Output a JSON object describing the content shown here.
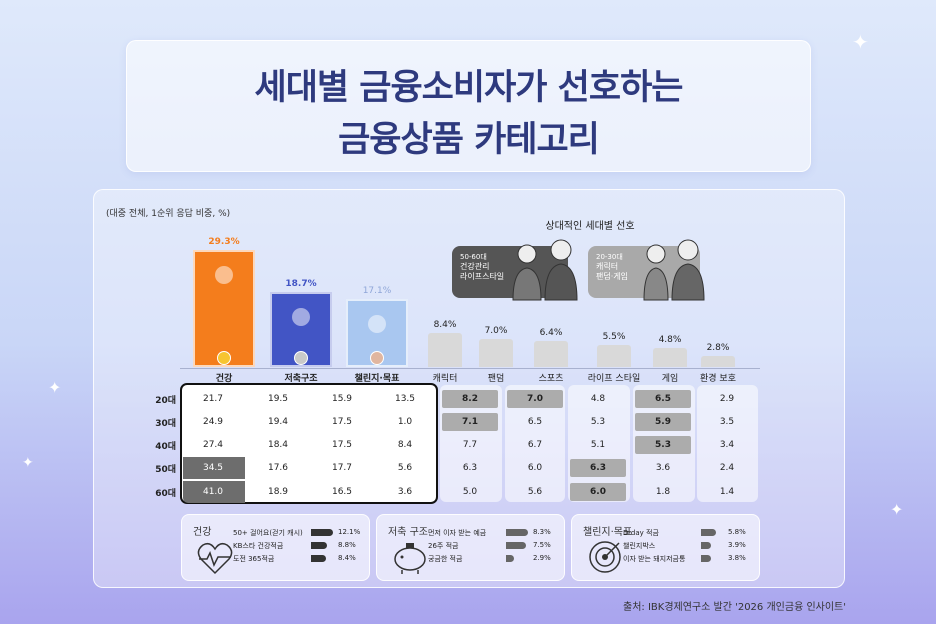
{
  "title": {
    "line1": "세대별 금융소비자가 선호하는",
    "line2": "금융상품 카테고리"
  },
  "note": "(대중 전체, 1순위 응답 비중, %)",
  "chart_data": {
    "type": "bar",
    "categories": [
      "건강",
      "저축구조",
      "챌린지·목표",
      "캐릭터",
      "팬덤",
      "스포츠",
      "라이프 스타일",
      "게임",
      "환경 보호"
    ],
    "values": [
      29.3,
      18.7,
      17.1,
      8.4,
      7.0,
      6.4,
      5.5,
      4.8,
      2.8
    ],
    "value_labels": [
      "29.3%",
      "18.7%",
      "17.1%",
      "8.4%",
      "7.0%",
      "6.4%",
      "5.5%",
      "4.8%",
      "2.8%"
    ],
    "ylim": [
      0,
      30
    ],
    "colors": [
      "#f47d1c",
      "#4255c5",
      "#a9c7f0",
      "#d9d9d9",
      "#d9d9d9",
      "#d9d9d9",
      "#d9d9d9",
      "#d9d9d9",
      "#d9d9d9"
    ]
  },
  "table": {
    "rows": [
      "20대",
      "30대",
      "40대",
      "50대",
      "60대"
    ],
    "columns": [
      "건강",
      "저축구조",
      "챌린지·목표",
      "캐릭터",
      "팬덤",
      "스포츠",
      "라이프 스타일",
      "게임",
      "환경 보호"
    ],
    "values": [
      [
        "21.7",
        "19.5",
        "15.9",
        "13.5",
        "8.2",
        "7.0",
        "4.8",
        "6.5",
        "2.9"
      ],
      [
        "24.9",
        "19.4",
        "17.5",
        "1.0",
        "7.1",
        "6.5",
        "5.3",
        "5.9",
        "3.5"
      ],
      [
        "27.4",
        "18.4",
        "17.5",
        "8.4",
        "7.7",
        "6.7",
        "5.1",
        "5.3",
        "3.4"
      ],
      [
        "34.5",
        "17.6",
        "17.7",
        "5.6",
        "6.3",
        "6.0",
        "6.3",
        "3.6",
        "2.4"
      ],
      [
        "41.0",
        "18.9",
        "16.5",
        "3.6",
        "5.0",
        "5.6",
        "6.0",
        "1.8",
        "1.4"
      ]
    ]
  },
  "preference": {
    "title": "상대적인 세대별 선호",
    "senior": {
      "age": "50-60대",
      "line1": "건강관리",
      "line2": "라이프스타일"
    },
    "young": {
      "age": "20-30대",
      "line1": "캐릭터",
      "line2": "팬덤·게임"
    }
  },
  "cards": [
    {
      "title": "건강",
      "icon": "heart-pulse-icon",
      "items": [
        {
          "label": "50+ 걸어요(걷기 캐시)",
          "value": "12.1%",
          "v": 12.1
        },
        {
          "label": "KB스타 건강적금",
          "value": "8.8%",
          "v": 8.8
        },
        {
          "label": "도전 365적금",
          "value": "8.4%",
          "v": 8.4
        }
      ]
    },
    {
      "title": "저축 구조",
      "icon": "piggy-bank-icon",
      "items": [
        {
          "label": "먼저 이자 받는 예금",
          "value": "8.3%",
          "v": 8.3
        },
        {
          "label": "26주 적금",
          "value": "7.5%",
          "v": 7.5
        },
        {
          "label": "궁금한 적금",
          "value": "2.9%",
          "v": 2.9
        }
      ]
    },
    {
      "title": "챌린지·목표",
      "icon": "target-icon",
      "items": [
        {
          "label": "D-day 적금",
          "value": "5.8%",
          "v": 5.8
        },
        {
          "label": "챌린지박스",
          "value": "3.9%",
          "v": 3.9
        },
        {
          "label": "이자 받는 돼지저금통",
          "value": "3.8%",
          "v": 3.8
        }
      ]
    }
  ],
  "source": "출처: IBK경제연구소 발간 '2026 개인금융 인사이트'"
}
